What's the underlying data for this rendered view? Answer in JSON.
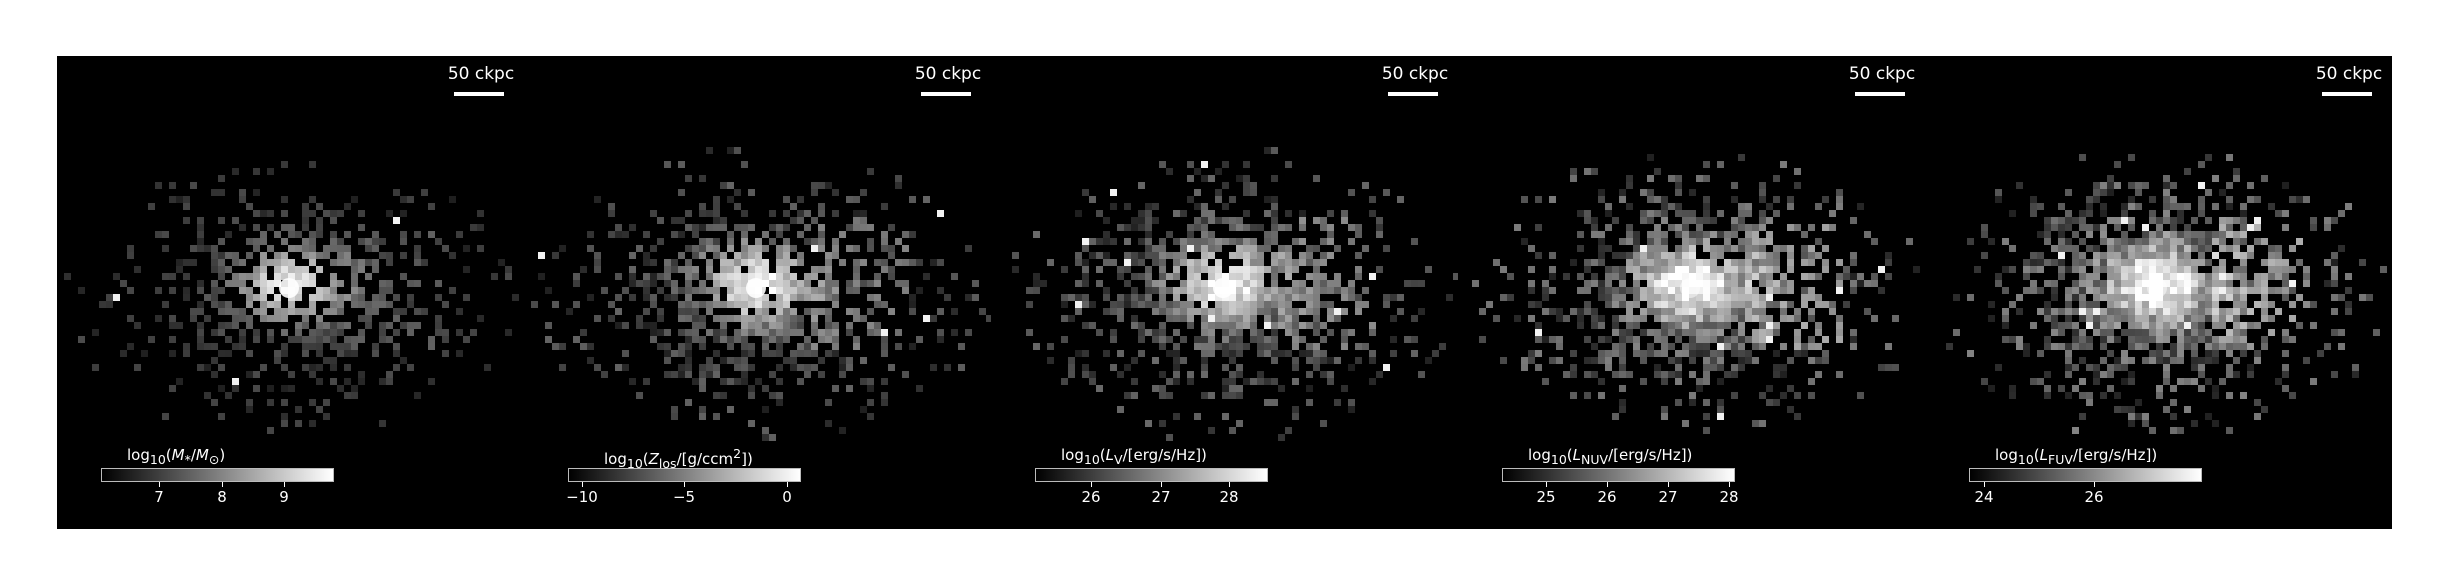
{
  "figure": {
    "panels": [
      {
        "id": "stellar-mass",
        "scale_label": "50 ckpc",
        "colorbar_label_html": "log<sub>10</sub>(<i>M</i><sub>*</sub>/<i>M</i><sub>⊙</sub>)",
        "ticks": [
          "7",
          "8",
          "9"
        ],
        "brightness": 0.35
      },
      {
        "id": "metal-column",
        "scale_label": "50 ckpc",
        "colorbar_label_html": "log<sub>10</sub>(<i>Z</i><sub>los</sub>/[g/ccm<sup>2</sup>])",
        "ticks": [
          "−10",
          "−5",
          "0"
        ],
        "brightness": 0.55
      },
      {
        "id": "v-band-luminosity",
        "scale_label": "50 ckpc",
        "colorbar_label_html": "log<sub>10</sub>(<i>L</i><sub>V</sub>/[erg/s/Hz])",
        "ticks": [
          "26",
          "27",
          "28"
        ],
        "brightness": 0.6
      },
      {
        "id": "nuv-luminosity",
        "scale_label": "50 ckpc",
        "colorbar_label_html": "log<sub>10</sub>(<i>L</i><sub>NUV</sub>/[erg/s/Hz])",
        "ticks": [
          "25",
          "26",
          "27",
          "28"
        ],
        "brightness": 0.75
      },
      {
        "id": "fuv-luminosity",
        "scale_label": "50 ckpc",
        "colorbar_label_html": "log<sub>10</sub>(<i>L</i><sub>FUV</sub>/[erg/s/Hz])",
        "ticks": [
          "24",
          "26"
        ],
        "brightness": 0.8
      }
    ]
  }
}
